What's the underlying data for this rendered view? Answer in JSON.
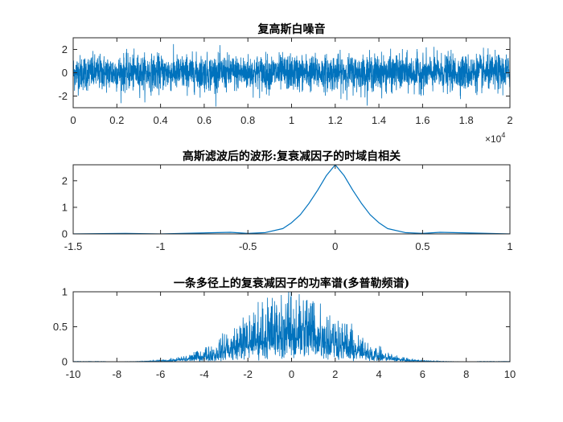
{
  "theme": {
    "line_color": "#0072BD",
    "axis_color": "#262626",
    "background": "#ffffff"
  },
  "chart_data": [
    {
      "type": "line",
      "title": "复高斯白噪音",
      "xlabel": "",
      "ylabel": "",
      "xlim": [
        0,
        20000
      ],
      "ylim": [
        -3,
        3
      ],
      "xticks": [
        0,
        2000,
        4000,
        6000,
        8000,
        10000,
        12000,
        14000,
        16000,
        18000,
        20000
      ],
      "xtick_labels": [
        "0",
        "0.2",
        "0.4",
        "0.6",
        "0.8",
        "1",
        "1.2",
        "1.4",
        "1.6",
        "1.8",
        "2"
      ],
      "yticks": [
        -2,
        0,
        2
      ],
      "ytick_labels": [
        "-2",
        "0",
        "2"
      ],
      "x_exponent": {
        "base": "×10",
        "power": "4"
      },
      "series": [
        {
          "signal": "gaussian white noise",
          "n_points": 20000,
          "mean": 0,
          "std": 0.75,
          "max": 2.6,
          "min": -2.9
        }
      ]
    },
    {
      "type": "line",
      "title": "高斯滤波后的波形:复衰减因子的时域自相关",
      "xlabel": "",
      "ylabel": "",
      "xlim": [
        -1.5,
        1
      ],
      "ylim": [
        0,
        2.6
      ],
      "xticks": [
        -1.5,
        -1,
        -0.5,
        0,
        0.5,
        1
      ],
      "xtick_labels": [
        "-1.5",
        "-1",
        "-0.5",
        "0",
        "0.5",
        "1"
      ],
      "yticks": [
        0,
        1,
        2
      ],
      "ytick_labels": [
        "0",
        "1",
        "2"
      ],
      "series": [
        {
          "x": [
            -1.5,
            -1.2,
            -1.0,
            -0.8,
            -0.6,
            -0.5,
            -0.4,
            -0.3,
            -0.25,
            -0.2,
            -0.15,
            -0.1,
            -0.05,
            0,
            0.05,
            0.1,
            0.15,
            0.2,
            0.25,
            0.3,
            0.4,
            0.5,
            0.6,
            0.8,
            1.0
          ],
          "y": [
            0.0,
            0.02,
            0.0,
            0.03,
            0.06,
            0.02,
            0.05,
            0.2,
            0.42,
            0.72,
            1.15,
            1.65,
            2.2,
            2.6,
            2.2,
            1.65,
            1.15,
            0.72,
            0.42,
            0.2,
            0.05,
            0.02,
            0.06,
            0.03,
            0.0
          ]
        }
      ]
    },
    {
      "type": "line",
      "title": "一条多径上的复衰减因子的功率谱(多普勒频谱)",
      "xlabel": "",
      "ylabel": "",
      "xlim": [
        -10,
        10
      ],
      "ylim": [
        0,
        1
      ],
      "xticks": [
        -10,
        -8,
        -6,
        -4,
        -2,
        0,
        2,
        4,
        6,
        8,
        10
      ],
      "xtick_labels": [
        "-10",
        "-8",
        "-6",
        "-4",
        "-2",
        "0",
        "2",
        "4",
        "6",
        "8",
        "10"
      ],
      "yticks": [
        0,
        0.5,
        1
      ],
      "ytick_labels": [
        "0",
        "0.5",
        "1"
      ],
      "series": [
        {
          "signal": "doppler power spectrum",
          "center": 0,
          "envelope_std": 2.2,
          "peak": 1.0,
          "clipped_above": 1.0,
          "n_points": 2000
        }
      ]
    }
  ]
}
